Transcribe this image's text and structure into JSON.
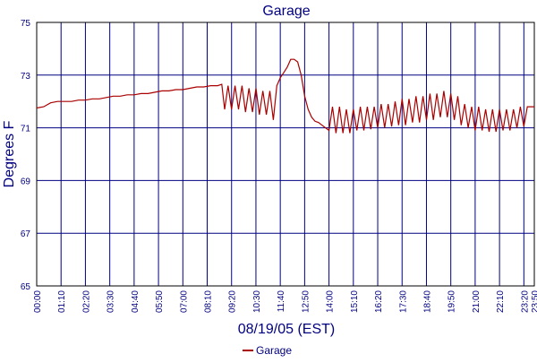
{
  "chart_data": {
    "type": "line",
    "title": "Garage",
    "xlabel": "08/19/05 (EST)",
    "ylabel": "Degrees F",
    "ylim": [
      65,
      75
    ],
    "y_ticks": [
      65,
      67,
      69,
      71,
      73,
      75
    ],
    "x_ticks": [
      "00:00",
      "01:10",
      "02:20",
      "03:30",
      "04:40",
      "05:50",
      "07:00",
      "08:10",
      "09:20",
      "10:30",
      "11:40",
      "12:50",
      "14:00",
      "15:10",
      "16:20",
      "17:30",
      "18:40",
      "19:50",
      "21:00",
      "22:10",
      "23:20",
      "23:50"
    ],
    "grid": true,
    "legend_position": "bottom-center",
    "colors": {
      "series": "#aa0000",
      "grid": "#000080",
      "axis_text": "#000080",
      "frame": "#000000"
    },
    "series": [
      {
        "name": "Garage",
        "x": [
          "00:00",
          "00:20",
          "00:40",
          "01:00",
          "01:20",
          "01:40",
          "02:00",
          "02:20",
          "02:40",
          "03:00",
          "03:20",
          "03:40",
          "04:00",
          "04:20",
          "04:40",
          "05:00",
          "05:20",
          "05:40",
          "06:00",
          "06:20",
          "06:40",
          "07:00",
          "07:20",
          "07:40",
          "08:00",
          "08:20",
          "08:40",
          "08:52",
          "09:00",
          "09:10",
          "09:20",
          "09:30",
          "09:40",
          "09:50",
          "10:00",
          "10:10",
          "10:20",
          "10:30",
          "10:40",
          "10:50",
          "11:00",
          "11:10",
          "11:20",
          "11:30",
          "11:40",
          "11:50",
          "12:00",
          "12:10",
          "12:20",
          "12:30",
          "12:40",
          "12:50",
          "13:00",
          "13:10",
          "13:20",
          "13:30",
          "13:40",
          "13:50",
          "14:00",
          "14:10",
          "14:20",
          "14:30",
          "14:40",
          "14:50",
          "15:00",
          "15:10",
          "15:20",
          "15:30",
          "15:40",
          "15:50",
          "16:00",
          "16:10",
          "16:20",
          "16:30",
          "16:40",
          "16:50",
          "17:00",
          "17:10",
          "17:20",
          "17:30",
          "17:40",
          "17:50",
          "18:00",
          "18:10",
          "18:20",
          "18:30",
          "18:40",
          "18:50",
          "19:00",
          "19:10",
          "19:20",
          "19:30",
          "19:40",
          "19:50",
          "20:00",
          "20:10",
          "20:20",
          "20:30",
          "20:40",
          "20:50",
          "21:00",
          "21:10",
          "21:20",
          "21:30",
          "21:40",
          "21:50",
          "22:00",
          "22:10",
          "22:20",
          "22:30",
          "22:40",
          "22:50",
          "23:00",
          "23:10",
          "23:20",
          "23:30",
          "23:40",
          "23:50"
        ],
        "values": [
          71.75,
          71.8,
          71.95,
          72.0,
          72.0,
          72.0,
          72.05,
          72.05,
          72.1,
          72.1,
          72.15,
          72.2,
          72.2,
          72.25,
          72.25,
          72.3,
          72.3,
          72.35,
          72.4,
          72.4,
          72.45,
          72.45,
          72.5,
          72.55,
          72.55,
          72.6,
          72.6,
          72.65,
          71.7,
          72.6,
          71.7,
          72.6,
          71.7,
          72.6,
          71.6,
          72.5,
          71.6,
          72.5,
          71.5,
          72.4,
          71.5,
          72.4,
          71.3,
          72.6,
          72.9,
          73.1,
          73.3,
          73.6,
          73.6,
          73.5,
          73.0,
          72.2,
          71.7,
          71.4,
          71.25,
          71.2,
          71.1,
          71.0,
          70.9,
          71.8,
          70.8,
          71.8,
          70.8,
          71.7,
          70.8,
          71.7,
          70.9,
          71.8,
          70.9,
          71.8,
          70.95,
          71.8,
          71.0,
          71.9,
          71.0,
          71.9,
          71.05,
          72.0,
          71.1,
          72.1,
          71.1,
          72.1,
          71.2,
          72.2,
          71.2,
          72.2,
          71.3,
          72.3,
          71.3,
          72.3,
          71.4,
          72.4,
          71.4,
          72.3,
          71.3,
          72.2,
          71.1,
          71.9,
          71.0,
          71.8,
          70.9,
          71.8,
          70.9,
          71.7,
          70.85,
          71.7,
          70.85,
          71.7,
          70.9,
          71.7,
          70.9,
          71.7,
          71.0,
          71.8,
          71.05,
          71.8,
          71.8,
          71.8
        ]
      }
    ]
  }
}
